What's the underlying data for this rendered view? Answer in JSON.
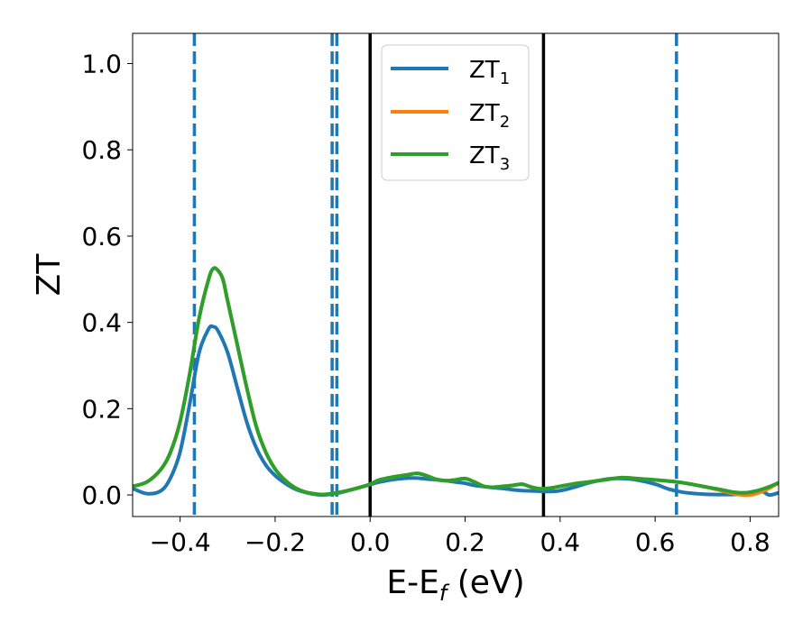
{
  "chart_data": {
    "type": "line",
    "xlabel": "E-E",
    "xlabel_sub": "f",
    "xlabel_unit": " (eV)",
    "ylabel": "ZT",
    "xlim": [
      -0.5,
      0.86
    ],
    "ylim": [
      -0.05,
      1.07
    ],
    "xticks": [
      -0.4,
      -0.2,
      0.0,
      0.2,
      0.4,
      0.6,
      0.8
    ],
    "xtick_labels": [
      "−0.4",
      "−0.2",
      "0.0",
      "0.2",
      "0.4",
      "0.6",
      "0.8"
    ],
    "yticks": [
      0.0,
      0.2,
      0.4,
      0.6,
      0.8,
      1.0
    ],
    "ytick_labels": [
      "0.0",
      "0.2",
      "0.4",
      "0.6",
      "0.8",
      "1.0"
    ],
    "grid": false,
    "legend_position": "top-center",
    "vlines_dashed": [
      -0.37,
      -0.08,
      -0.07,
      0.645
    ],
    "vlines_solid": [
      0.0,
      0.365
    ],
    "colors": {
      "zt1": "#1f77b4",
      "zt2": "#ff7f0e",
      "zt3": "#2ca02c",
      "solid": "#000000",
      "dashed": "#1f77b4"
    },
    "series": [
      {
        "name": "ZT",
        "sub": "1",
        "color": "#1f77b4",
        "x": [
          -0.5,
          -0.47,
          -0.44,
          -0.42,
          -0.4,
          -0.38,
          -0.36,
          -0.34,
          -0.33,
          -0.32,
          -0.3,
          -0.28,
          -0.26,
          -0.24,
          -0.22,
          -0.2,
          -0.18,
          -0.16,
          -0.14,
          -0.12,
          -0.1,
          -0.08,
          -0.06,
          -0.04,
          -0.02,
          0.0,
          0.02,
          0.05,
          0.08,
          0.1,
          0.12,
          0.15,
          0.18,
          0.2,
          0.22,
          0.25,
          0.28,
          0.3,
          0.32,
          0.35,
          0.38,
          0.4,
          0.43,
          0.46,
          0.5,
          0.53,
          0.56,
          0.6,
          0.63,
          0.66,
          0.7,
          0.74,
          0.78,
          0.82,
          0.84,
          0.86
        ],
        "y": [
          0.015,
          0.003,
          0.01,
          0.04,
          0.1,
          0.21,
          0.33,
          0.385,
          0.39,
          0.38,
          0.33,
          0.25,
          0.17,
          0.11,
          0.07,
          0.045,
          0.028,
          0.015,
          0.007,
          0.002,
          0.0,
          0.002,
          0.006,
          0.012,
          0.018,
          0.024,
          0.03,
          0.036,
          0.039,
          0.039,
          0.037,
          0.034,
          0.03,
          0.027,
          0.022,
          0.018,
          0.015,
          0.012,
          0.01,
          0.009,
          0.008,
          0.01,
          0.018,
          0.028,
          0.037,
          0.038,
          0.035,
          0.025,
          0.013,
          0.006,
          0.002,
          0.001,
          0.002,
          0.01,
          0.0,
          0.005
        ]
      },
      {
        "name": "ZT",
        "sub": "2",
        "color": "#ff7f0e",
        "x": [
          -0.5,
          -0.47,
          -0.44,
          -0.42,
          -0.4,
          -0.38,
          -0.36,
          -0.34,
          -0.33,
          -0.32,
          -0.31,
          -0.3,
          -0.28,
          -0.26,
          -0.24,
          -0.22,
          -0.2,
          -0.18,
          -0.16,
          -0.14,
          -0.12,
          -0.1,
          -0.08,
          -0.06,
          -0.04,
          -0.02,
          0.0,
          0.02,
          0.05,
          0.08,
          0.1,
          0.12,
          0.14,
          0.16,
          0.18,
          0.2,
          0.22,
          0.24,
          0.26,
          0.28,
          0.3,
          0.32,
          0.34,
          0.36,
          0.38,
          0.4,
          0.43,
          0.46,
          0.5,
          0.53,
          0.56,
          0.6,
          0.63,
          0.66,
          0.7,
          0.74,
          0.77,
          0.8,
          0.83,
          0.86
        ],
        "y": [
          0.02,
          0.03,
          0.06,
          0.1,
          0.17,
          0.28,
          0.41,
          0.5,
          0.525,
          0.52,
          0.5,
          0.45,
          0.35,
          0.25,
          0.16,
          0.1,
          0.06,
          0.035,
          0.018,
          0.008,
          0.003,
          0.001,
          0.003,
          0.007,
          0.012,
          0.018,
          0.025,
          0.035,
          0.042,
          0.047,
          0.05,
          0.044,
          0.036,
          0.033,
          0.035,
          0.038,
          0.03,
          0.02,
          0.018,
          0.02,
          0.022,
          0.025,
          0.018,
          0.014,
          0.016,
          0.02,
          0.026,
          0.03,
          0.036,
          0.04,
          0.038,
          0.035,
          0.032,
          0.028,
          0.02,
          0.01,
          0.002,
          0.0,
          0.01,
          0.028
        ]
      },
      {
        "name": "ZT",
        "sub": "3",
        "color": "#2ca02c",
        "x": [
          -0.5,
          -0.47,
          -0.44,
          -0.42,
          -0.4,
          -0.38,
          -0.36,
          -0.34,
          -0.33,
          -0.32,
          -0.31,
          -0.3,
          -0.28,
          -0.26,
          -0.24,
          -0.22,
          -0.2,
          -0.18,
          -0.16,
          -0.14,
          -0.12,
          -0.1,
          -0.08,
          -0.06,
          -0.04,
          -0.02,
          0.0,
          0.02,
          0.05,
          0.08,
          0.1,
          0.12,
          0.14,
          0.16,
          0.18,
          0.2,
          0.22,
          0.24,
          0.26,
          0.28,
          0.3,
          0.32,
          0.34,
          0.36,
          0.38,
          0.4,
          0.43,
          0.46,
          0.5,
          0.53,
          0.56,
          0.6,
          0.63,
          0.66,
          0.7,
          0.74,
          0.77,
          0.8,
          0.83,
          0.86
        ],
        "y": [
          0.02,
          0.03,
          0.06,
          0.1,
          0.17,
          0.28,
          0.41,
          0.5,
          0.525,
          0.52,
          0.5,
          0.45,
          0.35,
          0.25,
          0.16,
          0.1,
          0.06,
          0.035,
          0.018,
          0.008,
          0.003,
          0.001,
          0.003,
          0.007,
          0.012,
          0.018,
          0.025,
          0.035,
          0.042,
          0.047,
          0.05,
          0.044,
          0.036,
          0.033,
          0.035,
          0.038,
          0.03,
          0.02,
          0.018,
          0.02,
          0.022,
          0.025,
          0.018,
          0.014,
          0.016,
          0.02,
          0.026,
          0.03,
          0.036,
          0.04,
          0.038,
          0.035,
          0.032,
          0.028,
          0.02,
          0.012,
          0.006,
          0.006,
          0.015,
          0.028
        ]
      }
    ]
  }
}
